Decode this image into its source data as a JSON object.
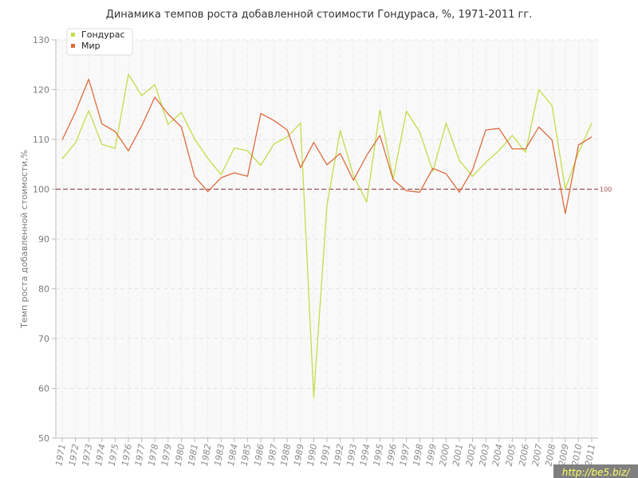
{
  "chart_data": {
    "type": "line",
    "title": "Динамика темпов роста добавленной стоимости Гондураса, %, 1971-2011 гг.",
    "xlabel": "",
    "ylabel": "Темп роста добавленной стоимости,%",
    "ylim": [
      50,
      130
    ],
    "yticks": [
      50,
      60,
      70,
      80,
      90,
      100,
      110,
      120,
      130
    ],
    "categories": [
      "1971",
      "1972",
      "1973",
      "1974",
      "1975",
      "1976",
      "1977",
      "1978",
      "1979",
      "1980",
      "1981",
      "1982",
      "1983",
      "1984",
      "1985",
      "1986",
      "1987",
      "1988",
      "1989",
      "1990",
      "1991",
      "1992",
      "1993",
      "1994",
      "1995",
      "1996",
      "1997",
      "1998",
      "1999",
      "2000",
      "2001",
      "2002",
      "2003",
      "2004",
      "2005",
      "2006",
      "2007",
      "2008",
      "2009",
      "2010",
      "2011"
    ],
    "grid": true,
    "legend_position": "top-left",
    "reference_line": {
      "value": 100,
      "label": "100",
      "color": "#a05050"
    },
    "series": [
      {
        "name": "Гондурас",
        "color": "#c2dd4a",
        "values": [
          106.1,
          109.3,
          115.8,
          109.0,
          108.2,
          123.1,
          118.8,
          121.0,
          113.0,
          115.4,
          110.1,
          106.2,
          102.9,
          108.3,
          107.7,
          104.8,
          109.1,
          110.5,
          113.3,
          58.2,
          96.8,
          111.8,
          102.7,
          97.4,
          115.9,
          102.0,
          115.7,
          111.5,
          103.6,
          113.3,
          105.8,
          102.6,
          105.4,
          107.8,
          110.8,
          107.4,
          120.0,
          116.8,
          100.0,
          107.4,
          113.3
        ]
      },
      {
        "name": "Мир",
        "color": "#dd6b3b",
        "values": [
          109.9,
          115.5,
          122.1,
          113.1,
          111.6,
          107.7,
          112.7,
          118.5,
          115.1,
          112.5,
          102.6,
          99.5,
          102.3,
          103.3,
          102.6,
          115.2,
          113.8,
          111.9,
          104.3,
          109.4,
          104.9,
          107.2,
          101.8,
          106.8,
          110.8,
          101.9,
          99.7,
          99.4,
          104.2,
          103.1,
          99.4,
          103.9,
          111.9,
          112.2,
          108.1,
          108.1,
          112.5,
          109.9,
          95.1,
          108.9,
          110.5
        ]
      }
    ]
  },
  "watermark": "http://be5.biz/"
}
